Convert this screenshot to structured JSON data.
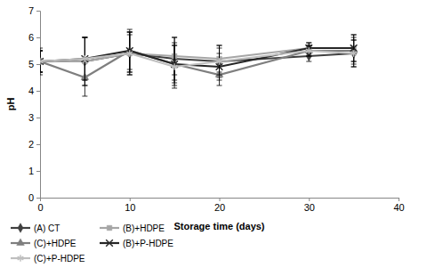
{
  "chart_data": {
    "type": "line",
    "x_label": "Storage time (days)",
    "y_label": "pH",
    "x": [
      0,
      5,
      10,
      15,
      20,
      30,
      35
    ],
    "xlim": [
      0,
      40
    ],
    "xticks": [
      0,
      10,
      20,
      30,
      40
    ],
    "ylim": [
      0,
      7
    ],
    "yticks": [
      0,
      1,
      2,
      3,
      4,
      5,
      6,
      7
    ],
    "grid": false,
    "legend": "bottom-left",
    "series": [
      {
        "name": "(A) CT",
        "color": "#404040",
        "marker": "diamond",
        "values": [
          5.1,
          5.1,
          5.4,
          5.2,
          5.1,
          5.3,
          5.4
        ],
        "errors": [
          0.5,
          0.9,
          0.7,
          0.8,
          0.6,
          0.2,
          0.5
        ]
      },
      {
        "name": "(B)+HDPE",
        "color": "#a6a6a6",
        "marker": "square",
        "values": [
          5.1,
          5.1,
          5.4,
          5.3,
          5.2,
          5.6,
          5.6
        ],
        "errors": [
          0.4,
          0.9,
          0.8,
          0.7,
          0.5,
          0.2,
          0.5
        ]
      },
      {
        "name": "(C)+HDPE",
        "color": "#7f7f7f",
        "marker": "triangle",
        "values": [
          5.1,
          4.5,
          5.5,
          5.0,
          4.6,
          5.5,
          5.5
        ],
        "errors": [
          0.4,
          0.7,
          0.8,
          0.8,
          0.4,
          0.2,
          0.5
        ]
      },
      {
        "name": "(B)+P-HDPE",
        "color": "#262626",
        "marker": "x",
        "values": [
          5.1,
          5.2,
          5.5,
          5.0,
          4.9,
          5.6,
          5.6
        ],
        "errors": [
          0.4,
          0.8,
          0.7,
          0.7,
          0.5,
          0.2,
          0.5
        ]
      },
      {
        "name": "(C)+P-HDPE",
        "color": "#bfbfbf",
        "marker": "asterisk",
        "values": [
          5.1,
          5.2,
          5.4,
          4.9,
          5.1,
          5.5,
          5.4
        ],
        "errors": [
          0.4,
          0.8,
          0.8,
          0.8,
          0.5,
          0.2,
          0.5
        ]
      }
    ]
  }
}
